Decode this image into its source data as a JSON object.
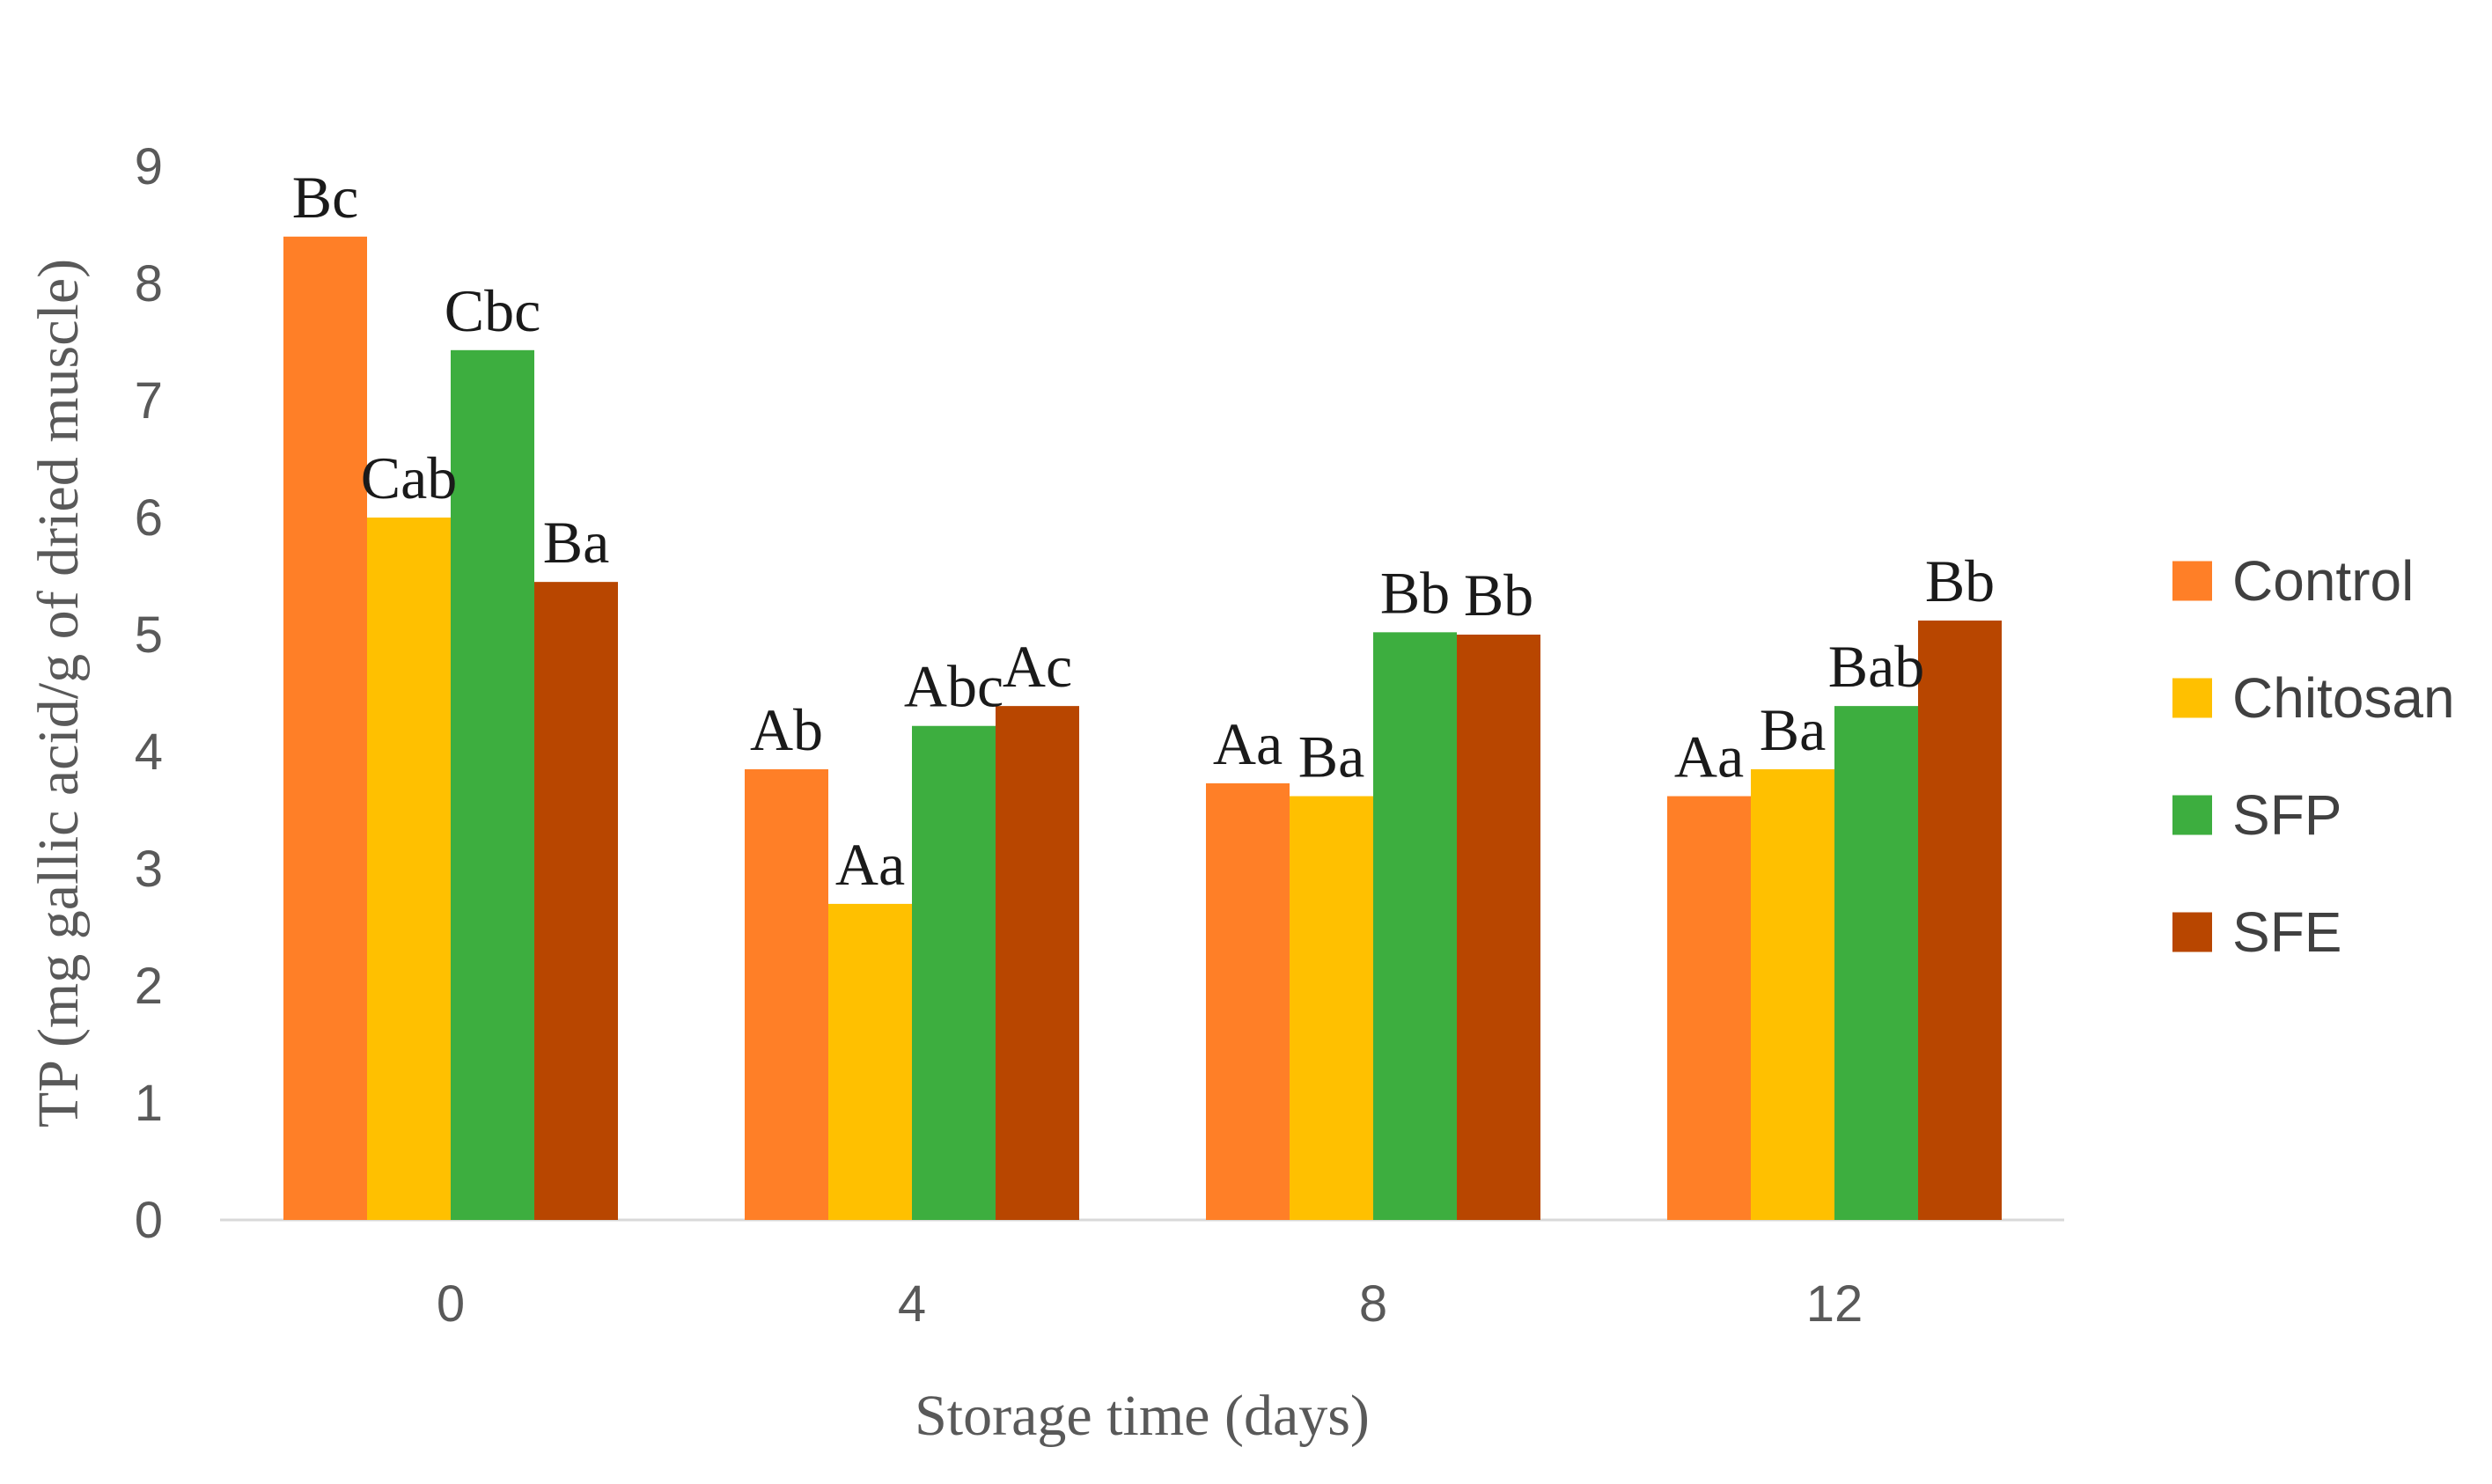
{
  "chart_data": {
    "type": "bar",
    "title": "",
    "xlabel": "Storage time (days)",
    "ylabel": "TP (mg gallic acid/g of dried muscle)",
    "ylim": [
      0,
      9
    ],
    "yticks": [
      "0",
      "1",
      "2",
      "3",
      "4",
      "5",
      "6",
      "7",
      "8",
      "9"
    ],
    "categories": [
      "0",
      "4",
      "8",
      "12"
    ],
    "grid": false,
    "legend_position": "right",
    "series": [
      {
        "name": "Control",
        "color": "#FF7F27",
        "values": [
          8.4,
          3.85,
          3.73,
          3.62
        ],
        "labels": [
          "Bc",
          "Ab",
          "Aa",
          "Aa"
        ]
      },
      {
        "name": "Chitosan",
        "color": "#FFC000",
        "values": [
          6.0,
          2.7,
          3.62,
          3.85
        ],
        "labels": [
          "Cab",
          "Aa",
          "Ba",
          "Ba"
        ]
      },
      {
        "name": "SFP",
        "color": "#3DAE3F",
        "values": [
          7.43,
          4.22,
          5.02,
          4.39
        ],
        "labels": [
          "Cbc",
          "Abc",
          "Bb",
          "Bab"
        ]
      },
      {
        "name": "SFE",
        "color": "#B84600",
        "values": [
          5.45,
          4.39,
          5.0,
          5.12
        ],
        "labels": [
          "Ba",
          "Ac",
          "Bb",
          "Bb"
        ]
      }
    ]
  }
}
